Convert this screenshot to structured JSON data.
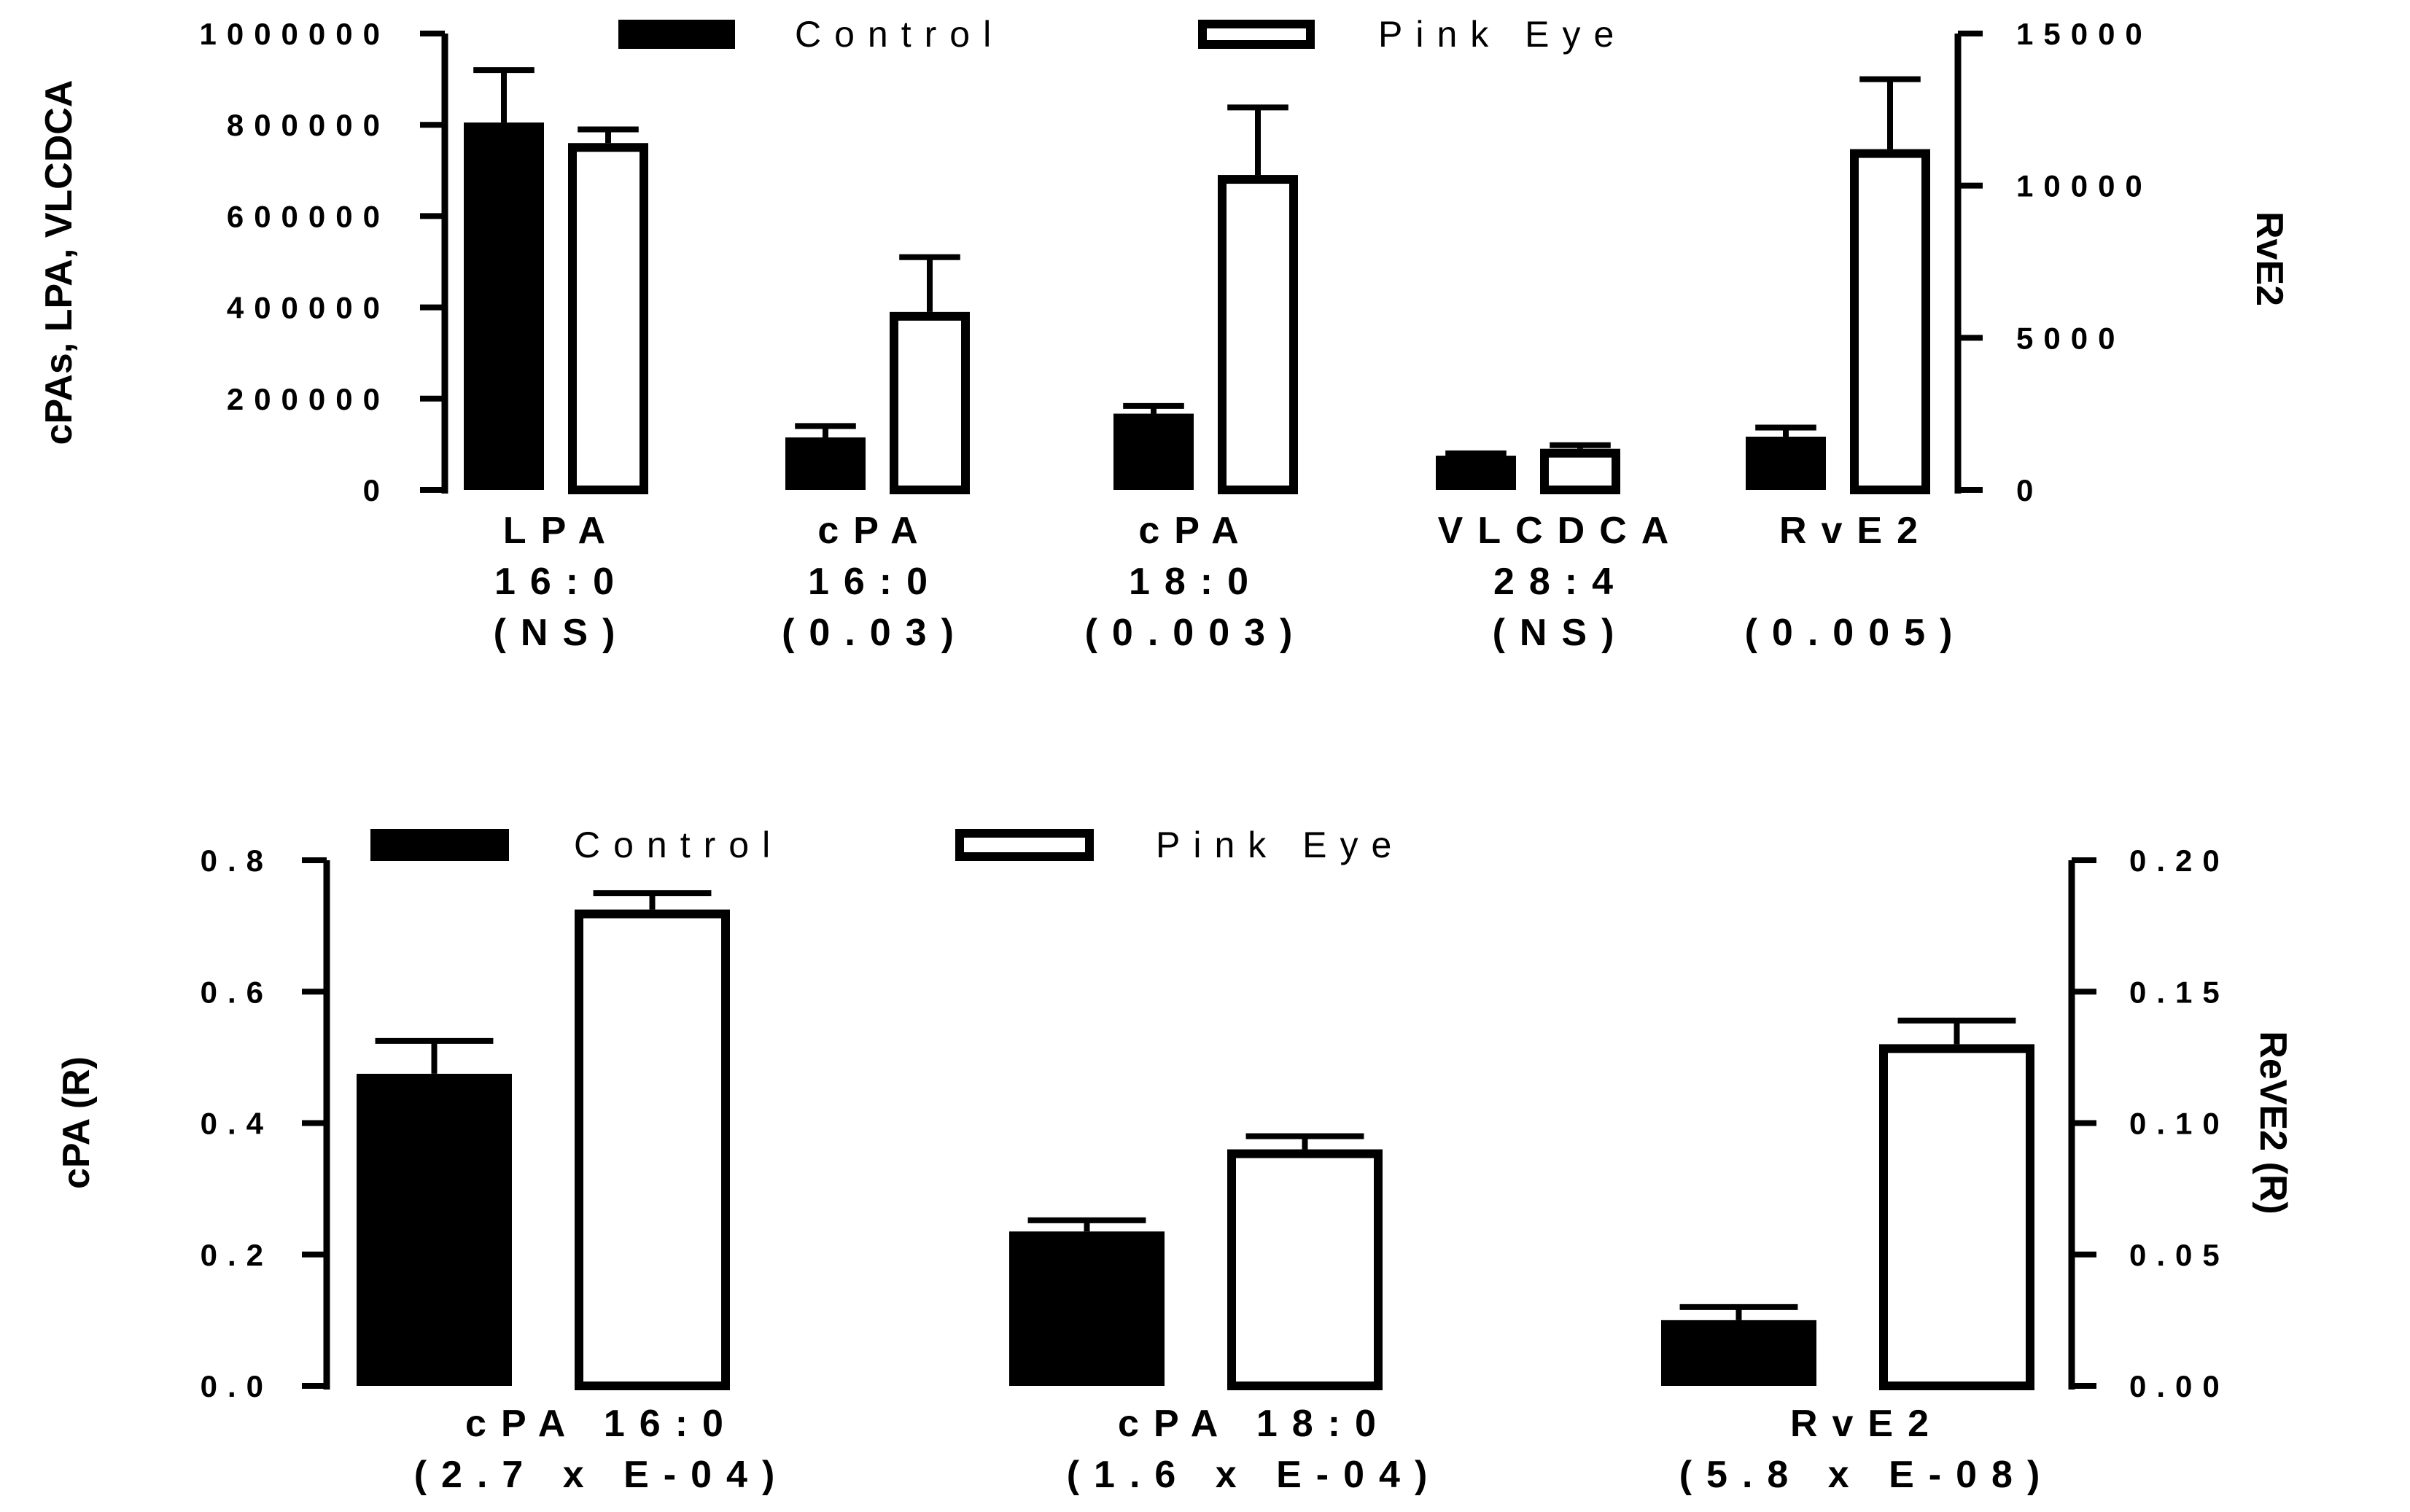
{
  "chart_data": [
    {
      "type": "bar",
      "series": [
        {
          "name": "Control",
          "fill": "#000000",
          "values": [
            805000,
            115000,
            167000,
            75000,
            1750
          ],
          "errors": [
            115000,
            25000,
            17000,
            5000,
            300
          ],
          "axis": [
            "left",
            "left",
            "left",
            "left",
            "right"
          ]
        },
        {
          "name": "Pink Eye",
          "fill": "#ffffff",
          "values": [
            760000,
            390000,
            690000,
            90000,
            11200
          ],
          "errors": [
            30000,
            120000,
            148000,
            8000,
            2300
          ],
          "axis": [
            "left",
            "left",
            "left",
            "left",
            "right"
          ]
        }
      ],
      "categories": [
        {
          "lines": [
            "LPA",
            "16:0",
            "(NS)"
          ]
        },
        {
          "lines": [
            "cPA",
            "16:0",
            "(0.03)"
          ]
        },
        {
          "lines": [
            "cPA",
            "18:0",
            "(0.003)"
          ]
        },
        {
          "lines": [
            "VLCDCA",
            "28:4",
            "(NS)"
          ]
        },
        {
          "lines": [
            "RvE2",
            "",
            "(0.005)"
          ]
        }
      ],
      "left_axis": {
        "label": "cPAs, LPA, VLCDCA",
        "ylim": [
          0,
          1000000
        ],
        "ticks": [
          "0",
          "200000",
          "400000",
          "600000",
          "800000",
          "1000000"
        ]
      },
      "right_axis": {
        "label": "RvE2",
        "ylim": [
          0,
          15000
        ],
        "ticks": [
          "0",
          "5000",
          "10000",
          "15000"
        ]
      },
      "legend": [
        "Control",
        "Pink Eye"
      ],
      "legend_position": "top-center"
    },
    {
      "type": "bar",
      "series": [
        {
          "name": "Control",
          "fill": "#000000",
          "values": [
            0.475,
            0.235,
            0.025
          ],
          "errors": [
            0.05,
            0.017,
            0.005
          ],
          "axis": [
            "left",
            "left",
            "right"
          ]
        },
        {
          "name": "Pink Eye",
          "fill": "#ffffff",
          "values": [
            0.725,
            0.36,
            0.13
          ],
          "errors": [
            0.025,
            0.02,
            0.009
          ],
          "axis": [
            "left",
            "left",
            "right"
          ]
        }
      ],
      "categories": [
        {
          "lines": [
            "cPA 16:0",
            "(2.7 x E-04)"
          ]
        },
        {
          "lines": [
            "cPA 18:0",
            "(1.6 x E-04)"
          ]
        },
        {
          "lines": [
            "RvE2",
            "(5.8 x E-08)"
          ]
        }
      ],
      "left_axis": {
        "label": "cPA (R)",
        "ylim": [
          0,
          0.8
        ],
        "ticks": [
          "0.0",
          "0.2",
          "0.4",
          "0.6",
          "0.8"
        ]
      },
      "right_axis": {
        "label": "ReVE2 (R)",
        "ylim": [
          0,
          0.2
        ],
        "ticks": [
          "0.00",
          "0.05",
          "0.10",
          "0.15",
          "0.20"
        ]
      },
      "legend": [
        "Control",
        "Pink Eye"
      ],
      "legend_position": "top-center"
    }
  ]
}
